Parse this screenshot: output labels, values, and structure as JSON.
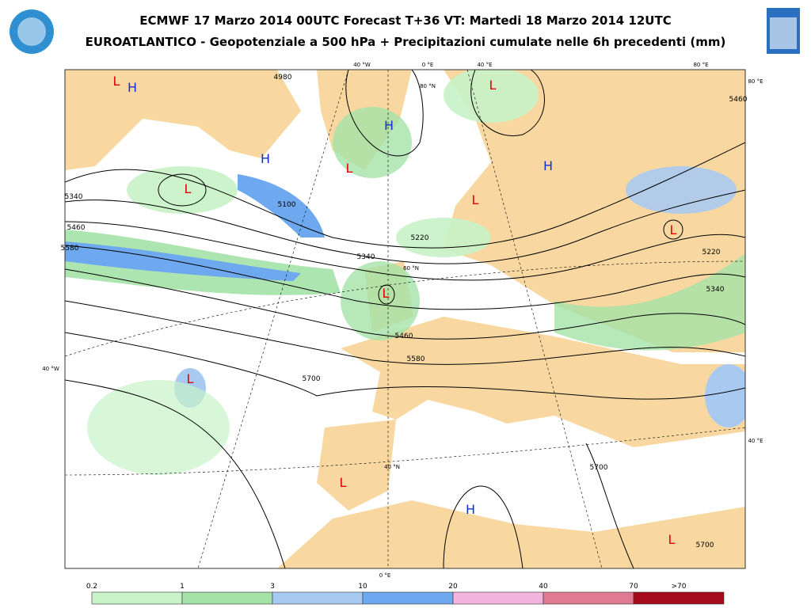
{
  "header": {
    "title": "ECMWF 17 Marzo 2014 00UTC Forecast T+36 VT: Martedi 18 Marzo 2014 12UTC",
    "subtitle": "EUROATLANTICO - Geopotenziale a 500 hPa + Precipitazioni cumulate nelle 6h precedenti (mm)"
  },
  "map": {
    "systems": [
      {
        "label": "L",
        "color": "#e00000"
      },
      {
        "label": "H",
        "color": "#1030d0"
      },
      {
        "label": "H",
        "color": "#1030d0"
      },
      {
        "label": "L",
        "color": "#e00000"
      },
      {
        "label": "H",
        "color": "#1030d0"
      },
      {
        "label": "L",
        "color": "#e00000"
      },
      {
        "label": "H",
        "color": "#1030d0"
      },
      {
        "label": "L",
        "color": "#e00000"
      },
      {
        "label": "L",
        "color": "#e00000"
      },
      {
        "label": "L",
        "color": "#e00000"
      },
      {
        "label": "L",
        "color": "#e00000"
      },
      {
        "label": "L",
        "color": "#e00000"
      },
      {
        "label": "L",
        "color": "#e00000"
      },
      {
        "label": "H",
        "color": "#1030d0"
      },
      {
        "label": "L",
        "color": "#e00000"
      }
    ],
    "contour_labels": [
      "4980",
      "5100",
      "5220",
      "5340",
      "5460",
      "5580",
      "5340",
      "5460",
      "5580",
      "5700",
      "5700",
      "5700",
      "5340",
      "5220",
      "5460"
    ],
    "graticule_labels": [
      "40 °W",
      "0 °E",
      "40 °E",
      "80 °E",
      "80 °E",
      "80 °N",
      "60 °N",
      "40 °W",
      "40 °N",
      "40 °E",
      "0 °E"
    ]
  },
  "legend": {
    "labels": [
      "0.2",
      "1",
      "3",
      "10",
      "20",
      "40",
      "70",
      ">70"
    ],
    "colors": [
      "#c8f2c8",
      "#a4e2a8",
      "#a8caf0",
      "#6ea8ee",
      "#f2b4dc",
      "#e07a90",
      "#a40c1c"
    ]
  }
}
